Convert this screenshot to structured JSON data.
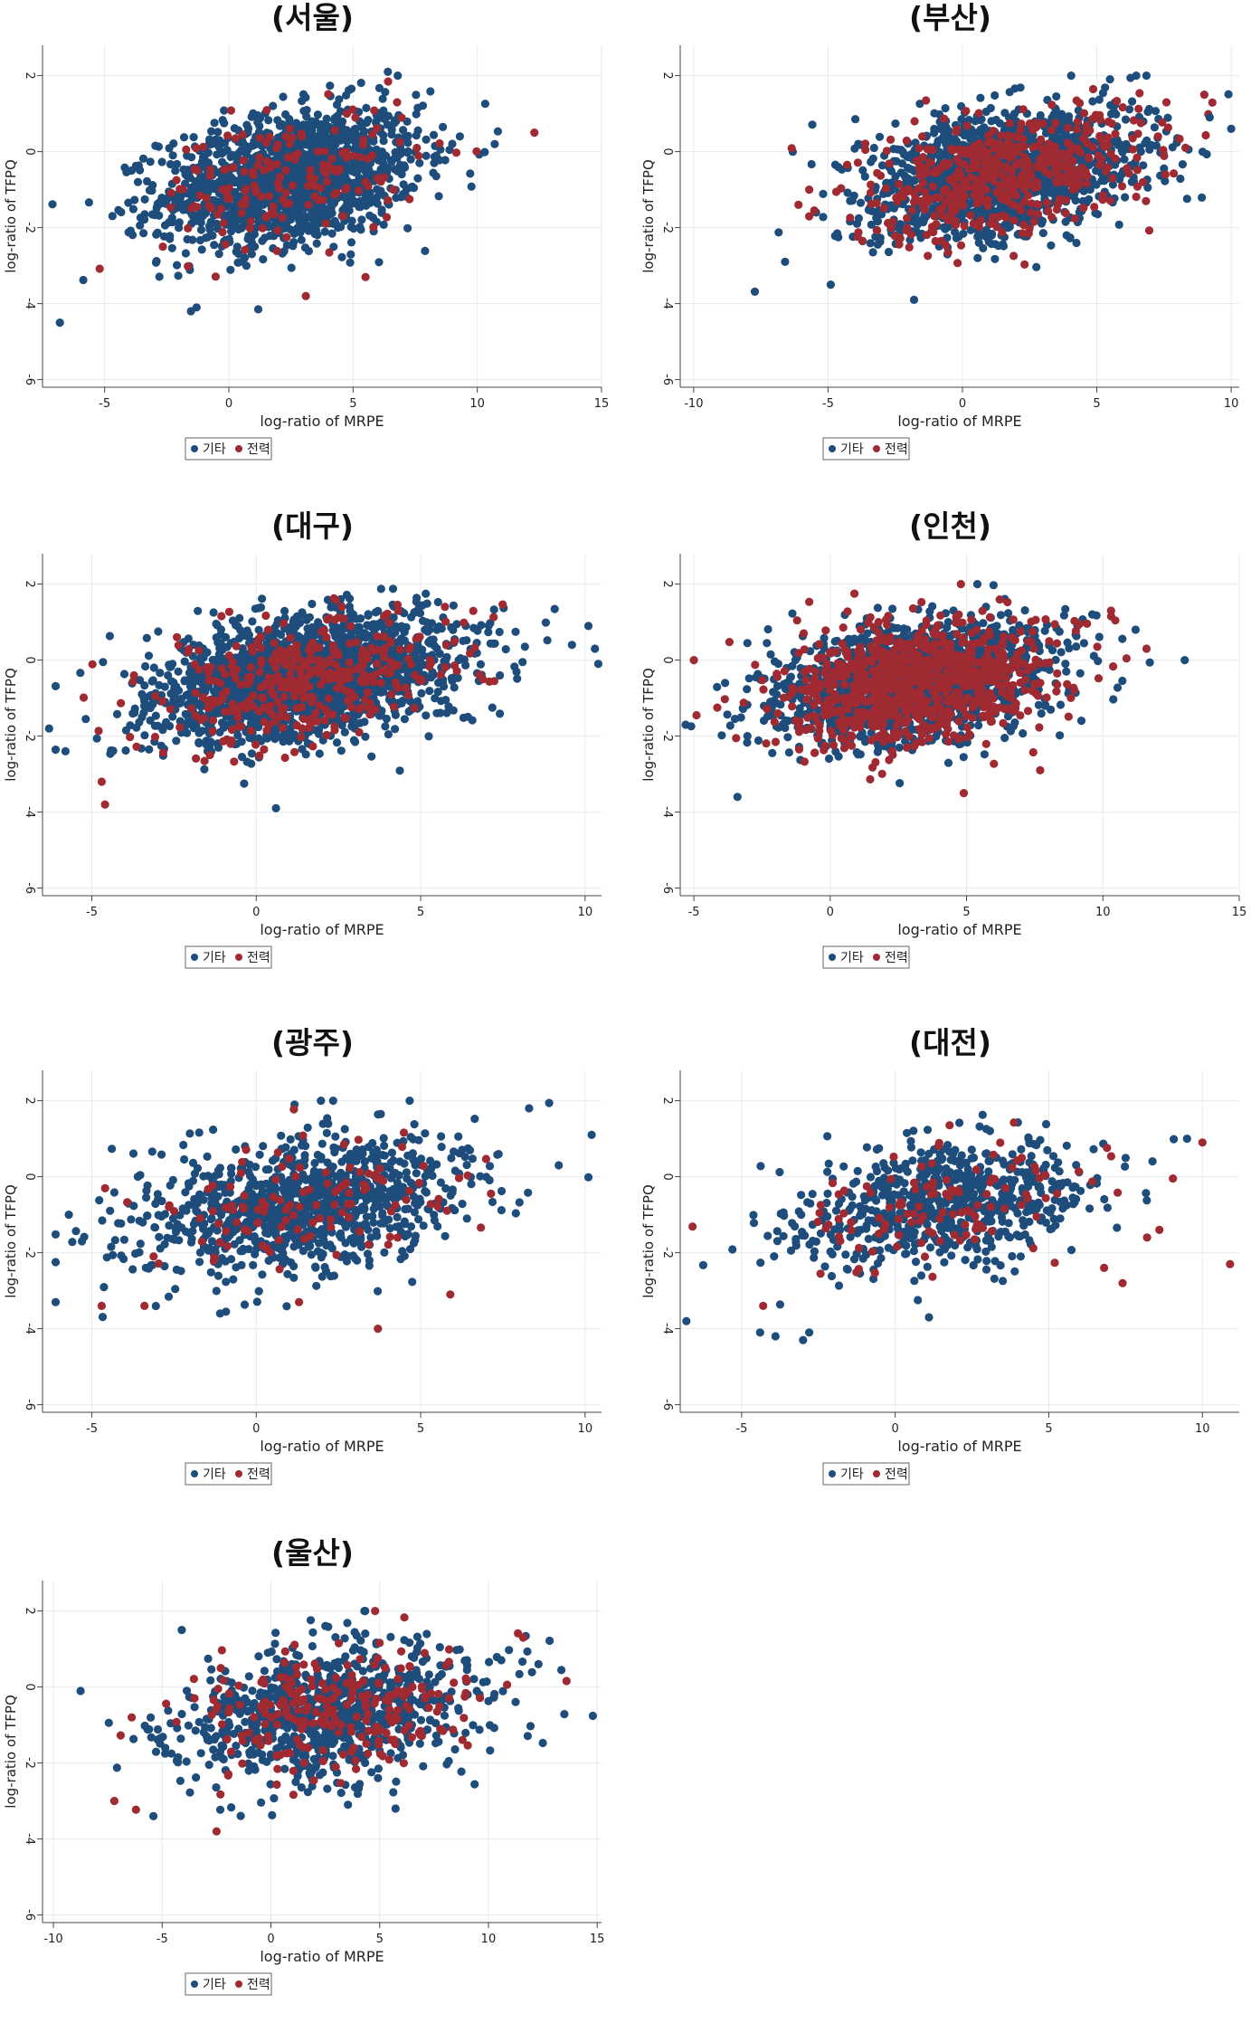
{
  "chart_data": [
    {
      "type": "scatter",
      "title": "(서울)",
      "xlabel": "log-ratio of MRPE",
      "ylabel": "log-ratio of TFPQ",
      "xlim": [
        -7.5,
        15
      ],
      "ylim": [
        -6.2,
        2.8
      ],
      "xticks": [
        -5,
        0,
        5,
        10,
        15
      ],
      "yticks": [
        2,
        0,
        -2,
        -4,
        -6
      ],
      "grid": true,
      "cloud": {
        "cx": 2.5,
        "cy": -0.7,
        "sx": 2.6,
        "sy": 0.9,
        "rho": 0.3
      },
      "n_other": 1500,
      "n_power": 170,
      "series": [
        {
          "name": "기타",
          "color": "#1e4d7b"
        },
        {
          "name": "전력",
          "color": "#a02a32"
        }
      ],
      "outliers_other": [
        [
          -6.8,
          -4.5
        ],
        [
          6.4,
          2.1
        ],
        [
          -1.3,
          -4.1
        ],
        [
          9.3,
          0.4
        ],
        [
          10.7,
          0.2
        ]
      ],
      "outliers_power": [
        [
          12.3,
          0.5
        ],
        [
          3.1,
          -3.8
        ],
        [
          5.5,
          -3.3
        ]
      ],
      "legend": "bottom-center"
    },
    {
      "type": "scatter",
      "title": "(부산)",
      "xlabel": "log-ratio of MRPE",
      "ylabel": "log-ratio of TFPQ",
      "xlim": [
        -10.5,
        10.3
      ],
      "ylim": [
        -6.2,
        2.8
      ],
      "xticks": [
        -10,
        -5,
        0,
        5,
        10
      ],
      "yticks": [
        2,
        0,
        -2,
        -4,
        -6
      ],
      "grid": true,
      "cloud": {
        "cx": 1.5,
        "cy": -0.6,
        "sx": 2.6,
        "sy": 0.85,
        "rho": 0.35
      },
      "n_other": 1450,
      "n_power": 500,
      "series": [
        {
          "name": "기타",
          "color": "#1e4d7b"
        },
        {
          "name": "전력",
          "color": "#a02a32"
        }
      ],
      "outliers_other": [
        [
          -6.6,
          -2.9
        ],
        [
          -4.9,
          -3.5
        ],
        [
          -1.8,
          -3.9
        ],
        [
          10,
          0.6
        ],
        [
          9.2,
          0.9
        ]
      ],
      "outliers_power": [
        [
          -6.1,
          -1.4
        ],
        [
          -5.7,
          -1
        ],
        [
          9,
          1.5
        ],
        [
          8.3,
          0.1
        ]
      ],
      "legend": "bottom-center"
    },
    {
      "type": "scatter",
      "title": "(대구)",
      "xlabel": "log-ratio of MRPE",
      "ylabel": "log-ratio of TFPQ",
      "xlim": [
        -6.5,
        10.5
      ],
      "ylim": [
        -6.2,
        2.8
      ],
      "xticks": [
        -5,
        0,
        5,
        10
      ],
      "yticks": [
        2,
        0,
        -2,
        -4,
        -6
      ],
      "grid": true,
      "cloud": {
        "cx": 1.5,
        "cy": -0.5,
        "sx": 2.3,
        "sy": 0.85,
        "rho": 0.35
      },
      "n_other": 1800,
      "n_power": 380,
      "series": [
        {
          "name": "기타",
          "color": "#1e4d7b"
        },
        {
          "name": "전력",
          "color": "#a02a32"
        }
      ],
      "outliers_other": [
        [
          -6.3,
          -1.8
        ],
        [
          -5.8,
          -2.4
        ],
        [
          0.6,
          -3.9
        ],
        [
          10.4,
          -0.1
        ],
        [
          10.3,
          0.3
        ],
        [
          9.6,
          0.4
        ]
      ],
      "outliers_power": [
        [
          -4.6,
          -3.8
        ],
        [
          -4.7,
          -3.2
        ]
      ],
      "legend": "bottom-center"
    },
    {
      "type": "scatter",
      "title": "(인천)",
      "xlabel": "log-ratio of MRPE",
      "ylabel": "log-ratio of TFPQ",
      "xlim": [
        -5.5,
        15
      ],
      "ylim": [
        -6.2,
        2.8
      ],
      "xticks": [
        -5,
        0,
        5,
        10,
        15
      ],
      "yticks": [
        2,
        0,
        -2,
        -4,
        -6
      ],
      "grid": true,
      "cloud": {
        "cx": 3,
        "cy": -0.6,
        "sx": 2.5,
        "sy": 0.8,
        "rho": 0.3
      },
      "n_other": 1500,
      "n_power": 900,
      "series": [
        {
          "name": "기타",
          "color": "#1e4d7b"
        },
        {
          "name": "전력",
          "color": "#a02a32"
        }
      ],
      "outliers_other": [
        [
          -5.3,
          -1.7
        ],
        [
          13,
          0
        ],
        [
          11.2,
          0.8
        ],
        [
          -3.4,
          -3.6
        ]
      ],
      "outliers_power": [
        [
          4.9,
          -3.5
        ],
        [
          7.7,
          -2.9
        ],
        [
          -5,
          0
        ],
        [
          11.6,
          0.3
        ],
        [
          10.3,
          1.3
        ]
      ],
      "legend": "bottom-center"
    },
    {
      "type": "scatter",
      "title": "(광주)",
      "xlabel": "log-ratio of MRPE",
      "ylabel": "log-ratio of TFPQ",
      "xlim": [
        -6.5,
        10.5
      ],
      "ylim": [
        -6.2,
        2.8
      ],
      "xticks": [
        -5,
        0,
        5,
        10
      ],
      "yticks": [
        2,
        0,
        -2,
        -4,
        -6
      ],
      "grid": true,
      "cloud": {
        "cx": 1.5,
        "cy": -0.7,
        "sx": 2.5,
        "sy": 0.9,
        "rho": 0.3
      },
      "n_other": 1000,
      "n_power": 120,
      "series": [
        {
          "name": "기타",
          "color": "#1e4d7b"
        },
        {
          "name": "전력",
          "color": "#a02a32"
        }
      ],
      "outliers_other": [
        [
          -6.1,
          -3.3
        ],
        [
          -5.7,
          -1
        ],
        [
          10.2,
          1.1
        ],
        [
          9.2,
          0.3
        ],
        [
          -1.1,
          -3.6
        ],
        [
          -5.3,
          -1.7
        ]
      ],
      "outliers_power": [
        [
          3.7,
          -4
        ],
        [
          5.9,
          -3.1
        ],
        [
          -4.7,
          -3.4
        ],
        [
          -3.4,
          -3.4
        ],
        [
          1.3,
          -3.3
        ]
      ],
      "legend": "bottom-center"
    },
    {
      "type": "scatter",
      "title": "(대전)",
      "xlabel": "log-ratio of MRPE",
      "ylabel": "log-ratio of TFPQ",
      "xlim": [
        -7,
        11.2
      ],
      "ylim": [
        -6.2,
        2.8
      ],
      "xticks": [
        -5,
        0,
        5,
        10
      ],
      "yticks": [
        2,
        0,
        -2,
        -4,
        -6
      ],
      "grid": true,
      "cloud": {
        "cx": 1.6,
        "cy": -0.7,
        "sx": 2.5,
        "sy": 0.85,
        "rho": 0.35
      },
      "n_other": 680,
      "n_power": 120,
      "series": [
        {
          "name": "기타",
          "color": "#1e4d7b"
        },
        {
          "name": "전력",
          "color": "#a02a32"
        }
      ],
      "outliers_other": [
        [
          -6.8,
          -3.8
        ],
        [
          -4.4,
          -4.1
        ],
        [
          -3.9,
          -4.2
        ],
        [
          -2.8,
          -4.1
        ],
        [
          -3,
          -4.3
        ],
        [
          1.1,
          -3.7
        ],
        [
          9.5,
          1
        ]
      ],
      "outliers_power": [
        [
          10.9,
          -2.3
        ],
        [
          10,
          0.9
        ],
        [
          7.4,
          -2.8
        ],
        [
          8.6,
          -1.4
        ],
        [
          8.2,
          -1.6
        ],
        [
          6.8,
          -2.4
        ],
        [
          -4.3,
          -3.4
        ]
      ],
      "legend": "bottom-center"
    },
    {
      "type": "scatter",
      "title": "(울산)",
      "xlabel": "log-ratio of MRPE",
      "ylabel": "log-ratio of TFPQ",
      "xlim": [
        -10.5,
        15.2
      ],
      "ylim": [
        -6.2,
        2.8
      ],
      "xticks": [
        -10,
        -5,
        0,
        5,
        10,
        15
      ],
      "yticks": [
        2,
        0,
        -2,
        -4,
        -6
      ],
      "grid": true,
      "cloud": {
        "cx": 2.5,
        "cy": -0.7,
        "sx": 3.4,
        "sy": 0.9,
        "rho": 0.25
      },
      "n_other": 900,
      "n_power": 250,
      "series": [
        {
          "name": "기타",
          "color": "#1e4d7b"
        },
        {
          "name": "전력",
          "color": "#a02a32"
        }
      ],
      "outliers_other": [
        [
          -5.4,
          -3.4
        ],
        [
          -4.1,
          1.5
        ],
        [
          12.3,
          0.6
        ]
      ],
      "outliers_power": [
        [
          -7.2,
          -3
        ],
        [
          -2.5,
          -3.8
        ],
        [
          11.6,
          1.3
        ],
        [
          -6.4,
          -0.8
        ]
      ],
      "legend": "bottom-center"
    }
  ]
}
